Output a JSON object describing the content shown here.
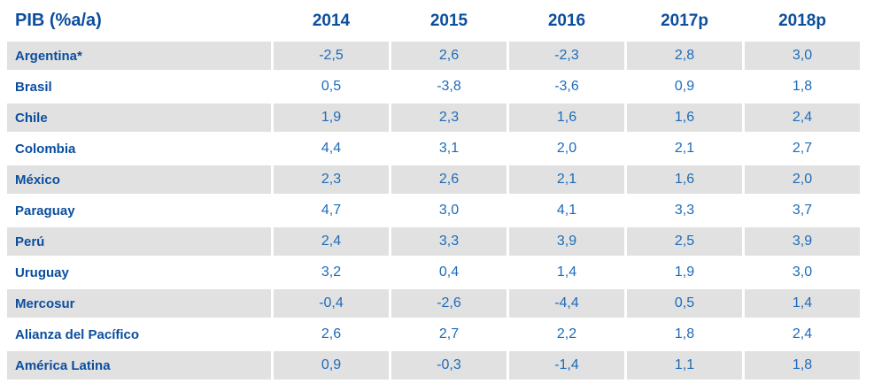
{
  "table": {
    "title": "PIB (%a/a)",
    "columns": [
      "2014",
      "2015",
      "2016",
      "2017p",
      "2018p"
    ],
    "rows": [
      {
        "name": "Argentina*",
        "values": [
          "-2,5",
          "2,6",
          "-2,3",
          "2,8",
          "3,0"
        ]
      },
      {
        "name": "Brasil",
        "values": [
          "0,5",
          "-3,8",
          "-3,6",
          "0,9",
          "1,8"
        ]
      },
      {
        "name": "Chile",
        "values": [
          "1,9",
          "2,3",
          "1,6",
          "1,6",
          "2,4"
        ]
      },
      {
        "name": "Colombia",
        "values": [
          "4,4",
          "3,1",
          "2,0",
          "2,1",
          "2,7"
        ]
      },
      {
        "name": "México",
        "values": [
          "2,3",
          "2,6",
          "2,1",
          "1,6",
          "2,0"
        ]
      },
      {
        "name": "Paraguay",
        "values": [
          "4,7",
          "3,0",
          "4,1",
          "3,3",
          "3,7"
        ]
      },
      {
        "name": "Perú",
        "values": [
          "2,4",
          "3,3",
          "3,9",
          "2,5",
          "3,9"
        ]
      },
      {
        "name": "Uruguay",
        "values": [
          "3,2",
          "0,4",
          "1,4",
          "1,9",
          "3,0"
        ]
      },
      {
        "name": "Mercosur",
        "values": [
          "-0,4",
          "-2,6",
          "-4,4",
          "0,5",
          "1,4"
        ]
      },
      {
        "name": "Alianza del Pacífico",
        "values": [
          "2,6",
          "2,7",
          "2,2",
          "1,8",
          "2,4"
        ]
      },
      {
        "name": "América Latina",
        "values": [
          "0,9",
          "-0,3",
          "-1,4",
          "1,1",
          "1,8"
        ]
      }
    ]
  },
  "colors": {
    "header_text": "#0B4E9E",
    "value_text": "#1E6BBA",
    "row_stripe": "#E1E1E1"
  },
  "chart_data": {
    "type": "table",
    "title": "PIB (%a/a)",
    "categories": [
      "2014",
      "2015",
      "2016",
      "2017p",
      "2018p"
    ],
    "series": [
      {
        "name": "Argentina*",
        "values": [
          -2.5,
          2.6,
          -2.3,
          2.8,
          3.0
        ]
      },
      {
        "name": "Brasil",
        "values": [
          0.5,
          -3.8,
          -3.6,
          0.9,
          1.8
        ]
      },
      {
        "name": "Chile",
        "values": [
          1.9,
          2.3,
          1.6,
          1.6,
          2.4
        ]
      },
      {
        "name": "Colombia",
        "values": [
          4.4,
          3.1,
          2.0,
          2.1,
          2.7
        ]
      },
      {
        "name": "México",
        "values": [
          2.3,
          2.6,
          2.1,
          1.6,
          2.0
        ]
      },
      {
        "name": "Paraguay",
        "values": [
          4.7,
          3.0,
          4.1,
          3.3,
          3.7
        ]
      },
      {
        "name": "Perú",
        "values": [
          2.4,
          3.3,
          3.9,
          2.5,
          3.9
        ]
      },
      {
        "name": "Uruguay",
        "values": [
          3.2,
          0.4,
          1.4,
          1.9,
          3.0
        ]
      },
      {
        "name": "Mercosur",
        "values": [
          -0.4,
          -2.6,
          -4.4,
          0.5,
          1.4
        ]
      },
      {
        "name": "Alianza del Pacífico",
        "values": [
          2.6,
          2.7,
          2.2,
          1.8,
          2.4
        ]
      },
      {
        "name": "América Latina",
        "values": [
          0.9,
          -0.3,
          -1.4,
          1.1,
          1.8
        ]
      }
    ]
  }
}
